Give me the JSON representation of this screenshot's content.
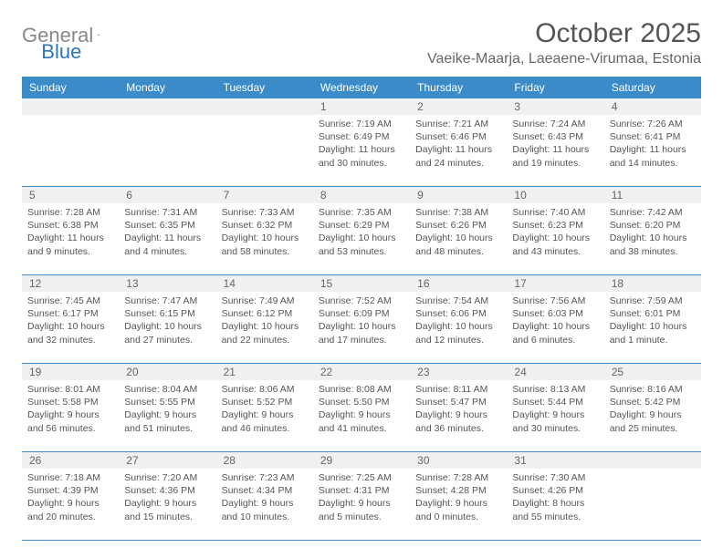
{
  "brand": {
    "name1": "General",
    "name2": "Blue"
  },
  "title": "October 2025",
  "location": "Vaeike-Maarja, Laeaene-Virumaa, Estonia",
  "colors": {
    "header_bg": "#3b8bc9",
    "header_text": "#ffffff",
    "num_bg": "#eef0f1",
    "border": "#3b8bc9",
    "text": "#555555",
    "logo_gray": "#888888",
    "logo_blue": "#2d76b8"
  },
  "days_of_week": [
    "Sunday",
    "Monday",
    "Tuesday",
    "Wednesday",
    "Thursday",
    "Friday",
    "Saturday"
  ],
  "weeks": [
    {
      "nums": [
        "",
        "",
        "",
        "1",
        "2",
        "3",
        "4"
      ],
      "cells": [
        {},
        {},
        {},
        {
          "sunrise": "Sunrise: 7:19 AM",
          "sunset": "Sunset: 6:49 PM",
          "daylight1": "Daylight: 11 hours",
          "daylight2": "and 30 minutes."
        },
        {
          "sunrise": "Sunrise: 7:21 AM",
          "sunset": "Sunset: 6:46 PM",
          "daylight1": "Daylight: 11 hours",
          "daylight2": "and 24 minutes."
        },
        {
          "sunrise": "Sunrise: 7:24 AM",
          "sunset": "Sunset: 6:43 PM",
          "daylight1": "Daylight: 11 hours",
          "daylight2": "and 19 minutes."
        },
        {
          "sunrise": "Sunrise: 7:26 AM",
          "sunset": "Sunset: 6:41 PM",
          "daylight1": "Daylight: 11 hours",
          "daylight2": "and 14 minutes."
        }
      ]
    },
    {
      "nums": [
        "5",
        "6",
        "7",
        "8",
        "9",
        "10",
        "11"
      ],
      "cells": [
        {
          "sunrise": "Sunrise: 7:28 AM",
          "sunset": "Sunset: 6:38 PM",
          "daylight1": "Daylight: 11 hours",
          "daylight2": "and 9 minutes."
        },
        {
          "sunrise": "Sunrise: 7:31 AM",
          "sunset": "Sunset: 6:35 PM",
          "daylight1": "Daylight: 11 hours",
          "daylight2": "and 4 minutes."
        },
        {
          "sunrise": "Sunrise: 7:33 AM",
          "sunset": "Sunset: 6:32 PM",
          "daylight1": "Daylight: 10 hours",
          "daylight2": "and 58 minutes."
        },
        {
          "sunrise": "Sunrise: 7:35 AM",
          "sunset": "Sunset: 6:29 PM",
          "daylight1": "Daylight: 10 hours",
          "daylight2": "and 53 minutes."
        },
        {
          "sunrise": "Sunrise: 7:38 AM",
          "sunset": "Sunset: 6:26 PM",
          "daylight1": "Daylight: 10 hours",
          "daylight2": "and 48 minutes."
        },
        {
          "sunrise": "Sunrise: 7:40 AM",
          "sunset": "Sunset: 6:23 PM",
          "daylight1": "Daylight: 10 hours",
          "daylight2": "and 43 minutes."
        },
        {
          "sunrise": "Sunrise: 7:42 AM",
          "sunset": "Sunset: 6:20 PM",
          "daylight1": "Daylight: 10 hours",
          "daylight2": "and 38 minutes."
        }
      ]
    },
    {
      "nums": [
        "12",
        "13",
        "14",
        "15",
        "16",
        "17",
        "18"
      ],
      "cells": [
        {
          "sunrise": "Sunrise: 7:45 AM",
          "sunset": "Sunset: 6:17 PM",
          "daylight1": "Daylight: 10 hours",
          "daylight2": "and 32 minutes."
        },
        {
          "sunrise": "Sunrise: 7:47 AM",
          "sunset": "Sunset: 6:15 PM",
          "daylight1": "Daylight: 10 hours",
          "daylight2": "and 27 minutes."
        },
        {
          "sunrise": "Sunrise: 7:49 AM",
          "sunset": "Sunset: 6:12 PM",
          "daylight1": "Daylight: 10 hours",
          "daylight2": "and 22 minutes."
        },
        {
          "sunrise": "Sunrise: 7:52 AM",
          "sunset": "Sunset: 6:09 PM",
          "daylight1": "Daylight: 10 hours",
          "daylight2": "and 17 minutes."
        },
        {
          "sunrise": "Sunrise: 7:54 AM",
          "sunset": "Sunset: 6:06 PM",
          "daylight1": "Daylight: 10 hours",
          "daylight2": "and 12 minutes."
        },
        {
          "sunrise": "Sunrise: 7:56 AM",
          "sunset": "Sunset: 6:03 PM",
          "daylight1": "Daylight: 10 hours",
          "daylight2": "and 6 minutes."
        },
        {
          "sunrise": "Sunrise: 7:59 AM",
          "sunset": "Sunset: 6:01 PM",
          "daylight1": "Daylight: 10 hours",
          "daylight2": "and 1 minute."
        }
      ]
    },
    {
      "nums": [
        "19",
        "20",
        "21",
        "22",
        "23",
        "24",
        "25"
      ],
      "cells": [
        {
          "sunrise": "Sunrise: 8:01 AM",
          "sunset": "Sunset: 5:58 PM",
          "daylight1": "Daylight: 9 hours",
          "daylight2": "and 56 minutes."
        },
        {
          "sunrise": "Sunrise: 8:04 AM",
          "sunset": "Sunset: 5:55 PM",
          "daylight1": "Daylight: 9 hours",
          "daylight2": "and 51 minutes."
        },
        {
          "sunrise": "Sunrise: 8:06 AM",
          "sunset": "Sunset: 5:52 PM",
          "daylight1": "Daylight: 9 hours",
          "daylight2": "and 46 minutes."
        },
        {
          "sunrise": "Sunrise: 8:08 AM",
          "sunset": "Sunset: 5:50 PM",
          "daylight1": "Daylight: 9 hours",
          "daylight2": "and 41 minutes."
        },
        {
          "sunrise": "Sunrise: 8:11 AM",
          "sunset": "Sunset: 5:47 PM",
          "daylight1": "Daylight: 9 hours",
          "daylight2": "and 36 minutes."
        },
        {
          "sunrise": "Sunrise: 8:13 AM",
          "sunset": "Sunset: 5:44 PM",
          "daylight1": "Daylight: 9 hours",
          "daylight2": "and 30 minutes."
        },
        {
          "sunrise": "Sunrise: 8:16 AM",
          "sunset": "Sunset: 5:42 PM",
          "daylight1": "Daylight: 9 hours",
          "daylight2": "and 25 minutes."
        }
      ]
    },
    {
      "nums": [
        "26",
        "27",
        "28",
        "29",
        "30",
        "31",
        ""
      ],
      "cells": [
        {
          "sunrise": "Sunrise: 7:18 AM",
          "sunset": "Sunset: 4:39 PM",
          "daylight1": "Daylight: 9 hours",
          "daylight2": "and 20 minutes."
        },
        {
          "sunrise": "Sunrise: 7:20 AM",
          "sunset": "Sunset: 4:36 PM",
          "daylight1": "Daylight: 9 hours",
          "daylight2": "and 15 minutes."
        },
        {
          "sunrise": "Sunrise: 7:23 AM",
          "sunset": "Sunset: 4:34 PM",
          "daylight1": "Daylight: 9 hours",
          "daylight2": "and 10 minutes."
        },
        {
          "sunrise": "Sunrise: 7:25 AM",
          "sunset": "Sunset: 4:31 PM",
          "daylight1": "Daylight: 9 hours",
          "daylight2": "and 5 minutes."
        },
        {
          "sunrise": "Sunrise: 7:28 AM",
          "sunset": "Sunset: 4:28 PM",
          "daylight1": "Daylight: 9 hours",
          "daylight2": "and 0 minutes."
        },
        {
          "sunrise": "Sunrise: 7:30 AM",
          "sunset": "Sunset: 4:26 PM",
          "daylight1": "Daylight: 8 hours",
          "daylight2": "and 55 minutes."
        },
        {}
      ]
    }
  ]
}
